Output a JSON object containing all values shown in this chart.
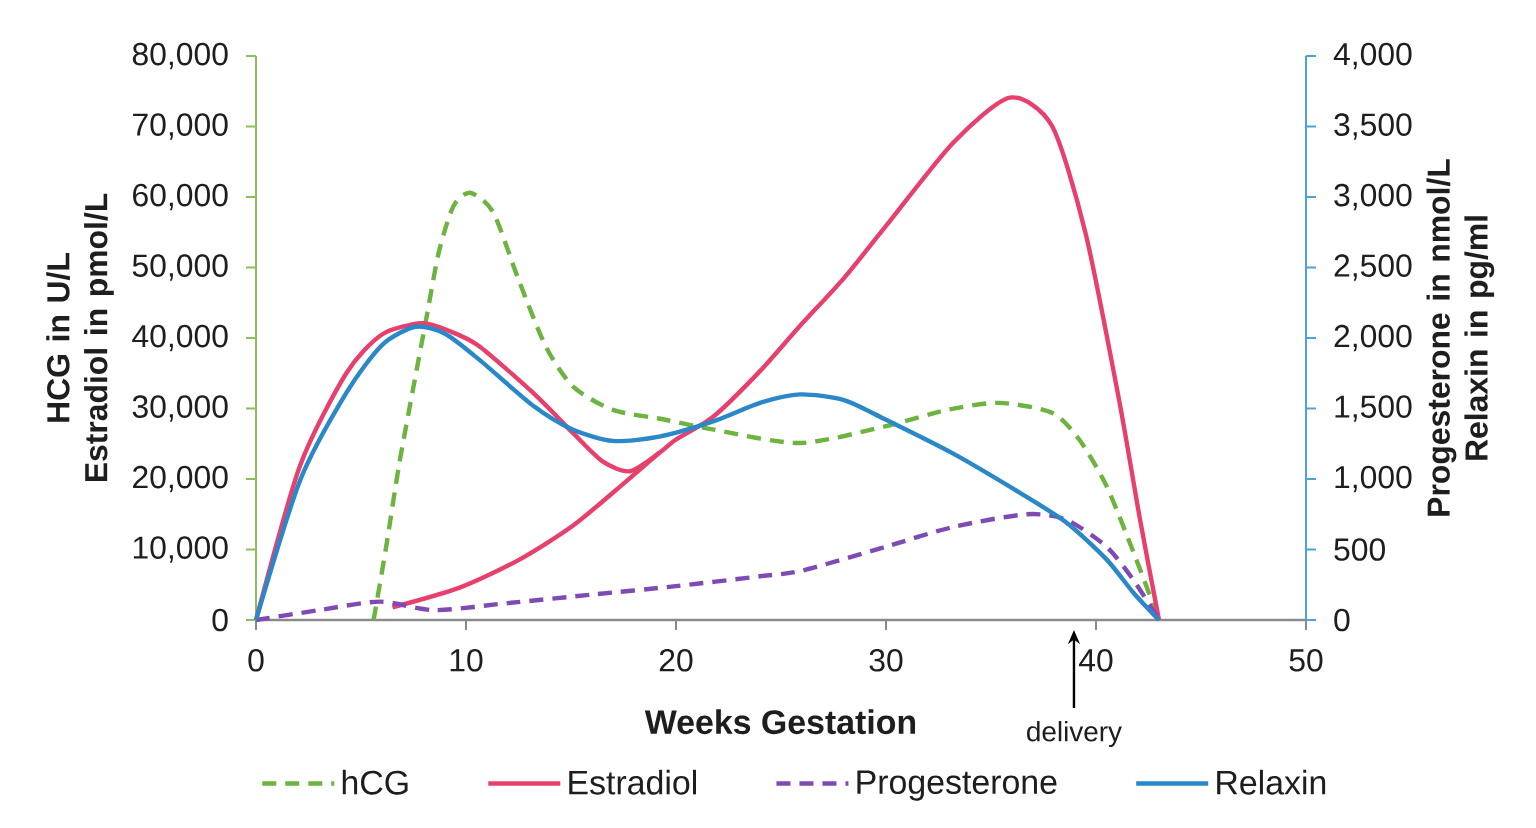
{
  "chart_data": {
    "type": "line",
    "xlabel": "Weeks Gestation",
    "ylabel": "HCG in U/L Estradiol in pmol/L",
    "y2label": "Progesterone in nmol/L Relaxin in pg/ml",
    "annotations": [
      "delivery"
    ],
    "xlim": [
      0,
      50
    ],
    "xticks": [
      0,
      10,
      20,
      30,
      40,
      50
    ],
    "ylim": [
      0,
      80000
    ],
    "yticks": [
      0,
      {
        "value": 10000,
        "label": "10,000"
      },
      {
        "value": 20000,
        "label": "20,000"
      },
      {
        "value": 30000,
        "label": "30,000"
      },
      {
        "value": 40000,
        "label": "40,000"
      },
      {
        "value": 50000,
        "label": "50,000"
      },
      {
        "value": 60000,
        "label": "60,000"
      },
      {
        "value": 70000,
        "label": "70,000"
      },
      {
        "value": 80000,
        "label": "80,000"
      }
    ],
    "y2lim": [
      0,
      4000
    ],
    "y2ticks": [
      0,
      500,
      {
        "value": 1000,
        "label": "1,000"
      },
      {
        "value": 1500,
        "label": "1,500"
      },
      {
        "value": 2000,
        "label": "2,000"
      },
      {
        "value": 2500,
        "label": "2,500"
      },
      {
        "value": 3000,
        "label": "3,000"
      },
      {
        "value": 3500,
        "label": "3,500"
      },
      {
        "value": 4000,
        "label": "4,000"
      }
    ],
    "legend": "bottom",
    "marker": "none",
    "series": [
      {
        "name": "hCG",
        "color": "#6db33f",
        "line_style": "dashed",
        "x": [
          5.6,
          6.2,
          6.8,
          7.5,
          8.1,
          8.7,
          9.4,
          10.2,
          11.3,
          12.5,
          13.8,
          15.1,
          17,
          19.5,
          21.8,
          25.9,
          30,
          32.9,
          35.4,
          37.9,
          39.2,
          40.5,
          41.8,
          43
        ],
        "values": [
          0,
          10400,
          21800,
          33100,
          42600,
          52100,
          58700,
          60600,
          57800,
          48300,
          38800,
          33100,
          29800,
          28400,
          27000,
          25100,
          27500,
          29800,
          30800,
          29400,
          25600,
          19000,
          9500,
          0
        ]
      },
      {
        "name": "Estradiol",
        "color": "#e8406c",
        "line_style": "solid",
        "x": [
          0,
          2.1,
          4.3,
          6,
          7.9,
          9.2,
          10.6,
          13.2,
          15.1,
          16.5,
          17.8,
          19.2,
          20,
          21.8,
          24,
          25.9,
          28,
          30,
          33.2,
          35.9,
          37.9,
          39.5,
          41.1,
          42.1,
          43
        ],
        "values": [
          0,
          21900,
          35000,
          40500,
          42100,
          41000,
          38900,
          32200,
          26500,
          22500,
          21100,
          23700,
          25600,
          28900,
          35300,
          41700,
          48500,
          55900,
          67700,
          74100,
          70100,
          54900,
          31200,
          14200,
          0
        ]
      },
      {
        "color": "#e8406c",
        "line_style": "solid",
        "x": [
          6.5,
          9.7,
          12.5,
          15.1,
          17.6,
          19.2
        ],
        "values": [
          1800,
          4600,
          8500,
          13400,
          19600,
          23700
        ]
      },
      {
        "name": "Progesterone",
        "color": "#7e4bb5",
        "line_style": "dashed",
        "axis": "y2",
        "x": [
          0,
          3,
          5.9,
          8.5,
          12,
          16,
          20,
          24,
          26,
          30,
          33.2,
          36.7,
          38.6,
          40.5,
          41.8,
          43
        ],
        "values": [
          0,
          70,
          130,
          70,
          120,
          180,
          240,
          310,
          350,
          520,
          660,
          750,
          710,
          520,
          280,
          0
        ]
      },
      {
        "name": "Relaxin",
        "color": "#2a88c8",
        "line_style": "solid",
        "axis": "y2",
        "x": [
          0,
          2.1,
          4.3,
          6,
          7.6,
          9,
          10.6,
          13.2,
          15.1,
          17,
          19.2,
          21.8,
          24,
          25.9,
          28,
          30,
          33.2,
          36.4,
          38.6,
          40.5,
          41.8,
          43
        ],
        "values": [
          0,
          990,
          1610,
          1950,
          2080,
          2030,
          1850,
          1520,
          1350,
          1270,
          1300,
          1410,
          1540,
          1600,
          1560,
          1420,
          1180,
          900,
          690,
          430,
          190,
          0
        ]
      }
    ]
  }
}
